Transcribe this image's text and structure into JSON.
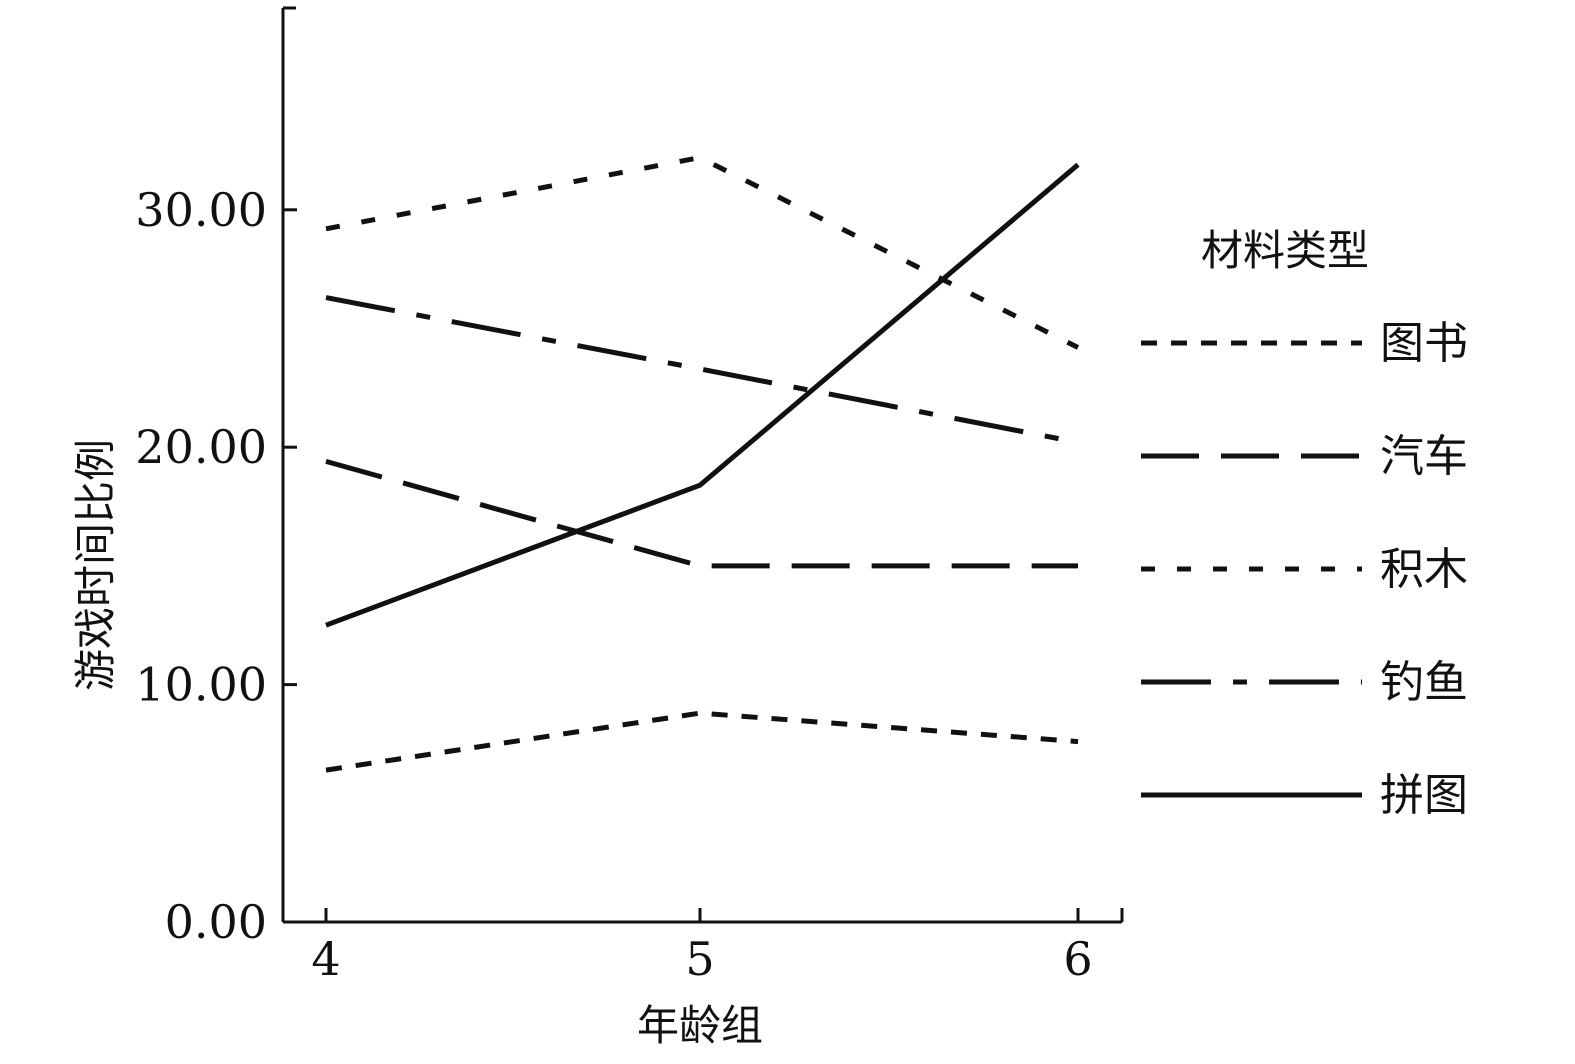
{
  "chart_data": {
    "type": "line",
    "title": "",
    "xlabel": "年龄组",
    "ylabel": "游戏时间比例",
    "x": [
      "4",
      "5",
      "6"
    ],
    "ylim": [
      0,
      38.5
    ],
    "yticks": [
      "0.00",
      "10.00",
      "20.00",
      "30.00"
    ],
    "ytick_values": [
      0,
      10,
      20,
      30
    ],
    "grid": false,
    "legend_title": "材料类型",
    "legend_placement": "right",
    "series": [
      {
        "name": "图书",
        "values": [
          6.4,
          8.8,
          7.6
        ],
        "dash": "short-dash",
        "color": "#111111"
      },
      {
        "name": "汽车",
        "values": [
          19.4,
          15.0,
          15.0
        ],
        "dash": "long-dash",
        "color": "#111111"
      },
      {
        "name": "积木",
        "values": [
          29.2,
          32.2,
          24.2
        ],
        "dash": "dash",
        "color": "#111111"
      },
      {
        "name": "钓鱼",
        "values": [
          26.3,
          23.3,
          20.2
        ],
        "dash": "dash-dot",
        "color": "#111111"
      },
      {
        "name": "拼图",
        "values": [
          12.5,
          18.4,
          31.9
        ],
        "dash": "solid",
        "color": "#111111"
      }
    ]
  }
}
